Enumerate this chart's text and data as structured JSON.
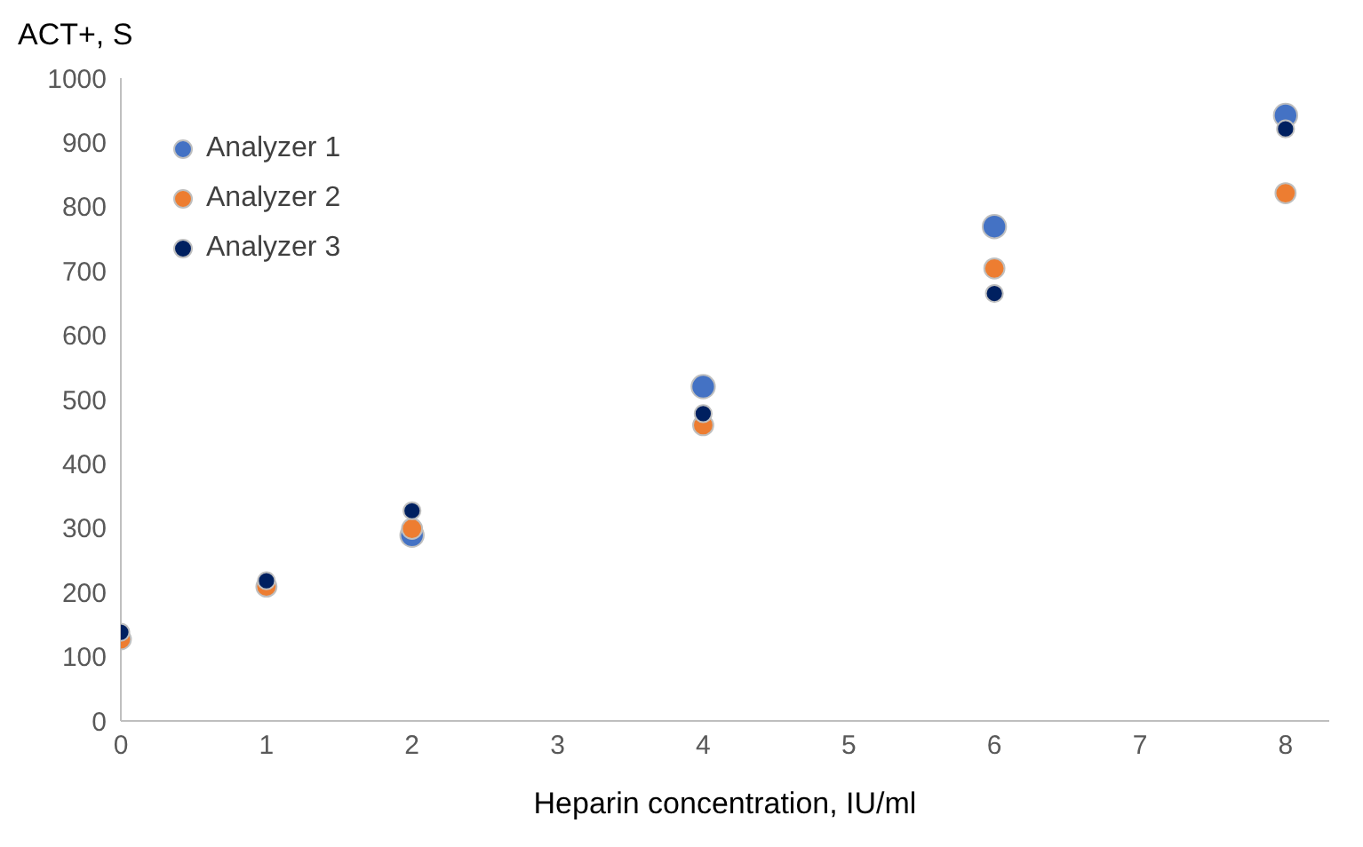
{
  "chart_data": {
    "type": "scatter",
    "xlabel": "Heparin concentration, IU/ml",
    "ylabel": "ACT+, S",
    "x": [
      0,
      1,
      2,
      4,
      6,
      8
    ],
    "series": [
      {
        "name": "Analyzer 1",
        "color": "#4472c4",
        "values": [
          null,
          null,
          289,
          520,
          769,
          942
        ]
      },
      {
        "name": "Analyzer 2",
        "color": "#ed7d31",
        "values": [
          127,
          209,
          299,
          460,
          704,
          821
        ]
      },
      {
        "name": "Analyzer 3",
        "color": "#002060",
        "values": [
          138,
          218,
          327,
          478,
          665,
          921
        ]
      }
    ],
    "xlim": [
      0,
      8.3
    ],
    "xticks": [
      0,
      1,
      2,
      3,
      4,
      5,
      6,
      7,
      8
    ],
    "ylim": [
      0,
      1000
    ],
    "yticks": [
      0,
      100,
      200,
      300,
      400,
      500,
      600,
      700,
      800,
      900,
      1000
    ],
    "grid": false,
    "legend": "top left",
    "marker": "circle"
  }
}
